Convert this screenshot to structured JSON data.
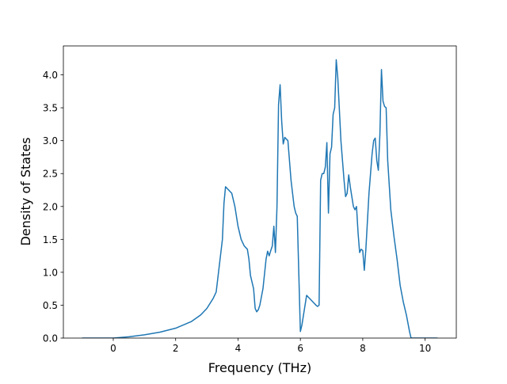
{
  "chart_data": {
    "type": "line",
    "xlabel": "Frequency (THz)",
    "ylabel": "Density of States",
    "xlim": [
      -1.6,
      11.0
    ],
    "ylim": [
      0.0,
      4.44
    ],
    "x_ticks": [
      0,
      2,
      4,
      6,
      8,
      10
    ],
    "y_ticks": [
      0.0,
      0.5,
      1.0,
      1.5,
      2.0,
      2.5,
      3.0,
      3.5,
      4.0
    ],
    "x_tick_labels": [
      "0",
      "2",
      "4",
      "6",
      "8",
      "10"
    ],
    "y_tick_labels": [
      "0.0",
      "0.5",
      "1.0",
      "1.5",
      "2.0",
      "2.5",
      "3.0",
      "3.5",
      "4.0"
    ],
    "grid": false,
    "series": [
      {
        "color": "#1f77b4",
        "x": [
          -1.0,
          0.0,
          0.5,
          1.0,
          1.5,
          2.0,
          2.5,
          2.8,
          3.0,
          3.2,
          3.3,
          3.4,
          3.5,
          3.55,
          3.6,
          3.7,
          3.8,
          3.9,
          4.0,
          4.05,
          4.1,
          4.2,
          4.3,
          4.35,
          4.4,
          4.45,
          4.5,
          4.55,
          4.6,
          4.65,
          4.7,
          4.8,
          4.9,
          4.95,
          5.0,
          5.05,
          5.1,
          5.15,
          5.2,
          5.25,
          5.3,
          5.35,
          5.4,
          5.45,
          5.5,
          5.6,
          5.7,
          5.75,
          5.8,
          5.85,
          5.9,
          6.0,
          6.05,
          6.1,
          6.2,
          6.3,
          6.4,
          6.5,
          6.55,
          6.6,
          6.65,
          6.7,
          6.75,
          6.8,
          6.85,
          6.9,
          6.95,
          7.0,
          7.05,
          7.1,
          7.15,
          7.2,
          7.3,
          7.4,
          7.45,
          7.5,
          7.55,
          7.6,
          7.7,
          7.75,
          7.8,
          7.85,
          7.9,
          7.95,
          8.0,
          8.05,
          8.1,
          8.2,
          8.3,
          8.35,
          8.4,
          8.45,
          8.5,
          8.55,
          8.6,
          8.65,
          8.7,
          8.75,
          8.8,
          8.9,
          9.0,
          9.1,
          9.2,
          9.3,
          9.4,
          9.5,
          9.55,
          9.6,
          10.0,
          10.4
        ],
        "y": [
          0.0,
          0.0,
          0.02,
          0.05,
          0.09,
          0.15,
          0.25,
          0.35,
          0.45,
          0.6,
          0.7,
          1.1,
          1.5,
          2.05,
          2.3,
          2.25,
          2.2,
          2.0,
          1.7,
          1.6,
          1.5,
          1.4,
          1.35,
          1.2,
          0.95,
          0.85,
          0.75,
          0.45,
          0.4,
          0.43,
          0.5,
          0.75,
          1.2,
          1.32,
          1.25,
          1.33,
          1.4,
          1.7,
          1.3,
          2.0,
          3.55,
          3.85,
          3.3,
          2.95,
          3.05,
          3.0,
          2.4,
          2.2,
          2.0,
          1.9,
          1.85,
          0.1,
          0.2,
          0.35,
          0.65,
          0.6,
          0.55,
          0.5,
          0.48,
          0.5,
          2.4,
          2.5,
          2.5,
          2.6,
          2.97,
          1.9,
          2.8,
          2.9,
          3.4,
          3.5,
          4.23,
          3.95,
          3.0,
          2.4,
          2.15,
          2.2,
          2.48,
          2.3,
          2.0,
          1.95,
          2.0,
          1.6,
          1.3,
          1.35,
          1.33,
          1.03,
          1.35,
          2.2,
          2.8,
          3.0,
          3.04,
          2.7,
          2.55,
          3.1,
          4.08,
          3.6,
          3.52,
          3.5,
          2.7,
          1.95,
          1.55,
          1.2,
          0.8,
          0.55,
          0.35,
          0.1,
          0.0,
          0.0,
          0.0,
          0.0
        ]
      }
    ]
  }
}
